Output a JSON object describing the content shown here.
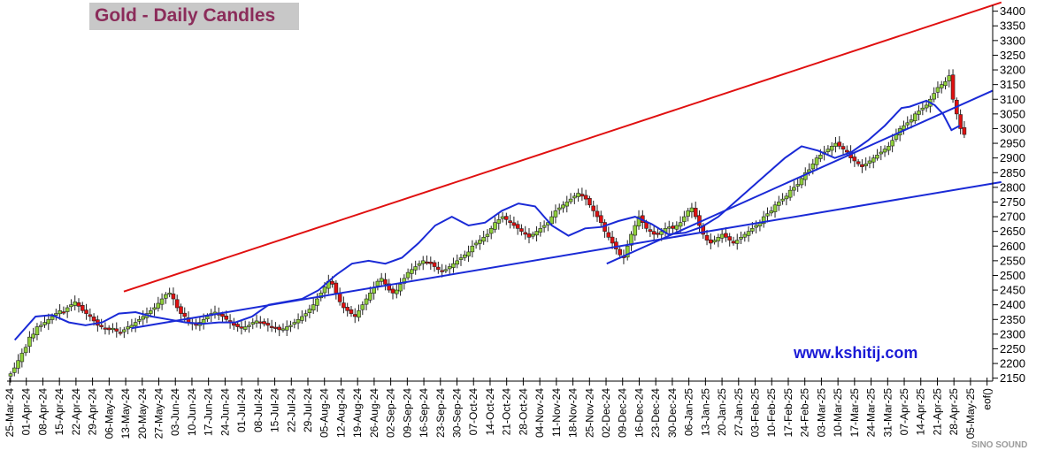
{
  "chart_data": {
    "type": "candlestick",
    "title": "Gold - Daily Candles",
    "watermark_url": "www.kshitij.com",
    "source_logo": "SINO SOUND",
    "y_ticks": [
      2150,
      2200,
      2250,
      2300,
      2350,
      2400,
      2450,
      2500,
      2550,
      2600,
      2650,
      2700,
      2750,
      2800,
      2850,
      2900,
      2950,
      3000,
      3050,
      3100,
      3150,
      3200,
      3250,
      3300,
      3350,
      3400
    ],
    "ylim": [
      2140,
      3420
    ],
    "x_labels": [
      "25-Mar-24",
      "01-Apr-24",
      "08-Apr-24",
      "15-Apr-24",
      "22-Apr-24",
      "29-Apr-24",
      "06-May-24",
      "13-May-24",
      "20-May-24",
      "27-May-24",
      "03-Jun-24",
      "10-Jun-24",
      "17-Jun-24",
      "24-Jun-24",
      "01-Jul-24",
      "08-Jul-24",
      "15-Jul-24",
      "22-Jul-24",
      "29-Jul-24",
      "05-Aug-24",
      "12-Aug-24",
      "19-Aug-24",
      "26-Aug-24",
      "02-Sep-24",
      "09-Sep-24",
      "16-Sep-24",
      "23-Sep-24",
      "30-Sep-24",
      "07-Oct-24",
      "14-Oct-24",
      "21-Oct-24",
      "28-Oct-24",
      "04-Nov-24",
      "11-Nov-24",
      "18-Nov-24",
      "25-Nov-24",
      "02-Dec-24",
      "09-Dec-24",
      "16-Dec-24",
      "23-Dec-24",
      "30-Dec-24",
      "06-Jan-25",
      "13-Jan-25",
      "20-Jan-25",
      "27-Jan-25",
      "03-Feb-25",
      "10-Feb-25",
      "17-Feb-25",
      "24-Feb-25",
      "03-Mar-25",
      "10-Mar-25",
      "17-Mar-25",
      "24-Mar-25",
      "31-Mar-25",
      "07-Apr-25",
      "14-Apr-25",
      "21-Apr-25",
      "28-Apr-25",
      "05-May-25",
      "eof()"
    ],
    "series": [
      {
        "name": "Gold daily close",
        "values": [
          2165,
          2185,
          2210,
          2235,
          2255,
          2290,
          2300,
          2325,
          2330,
          2340,
          2350,
          2360,
          2370,
          2380,
          2375,
          2390,
          2400,
          2410,
          2395,
          2380,
          2370,
          2360,
          2345,
          2330,
          2325,
          2320,
          2315,
          2320,
          2310,
          2305,
          2315,
          2325,
          2330,
          2340,
          2350,
          2360,
          2370,
          2380,
          2390,
          2405,
          2420,
          2435,
          2440,
          2420,
          2390,
          2370,
          2360,
          2340,
          2335,
          2330,
          2340,
          2350,
          2360,
          2370,
          2375,
          2365,
          2360,
          2350,
          2340,
          2330,
          2325,
          2320,
          2325,
          2330,
          2340,
          2345,
          2340,
          2335,
          2330,
          2325,
          2320,
          2315,
          2318,
          2325,
          2330,
          2340,
          2350,
          2360,
          2370,
          2385,
          2400,
          2420,
          2440,
          2460,
          2480,
          2470,
          2440,
          2410,
          2390,
          2380,
          2370,
          2360,
          2380,
          2400,
          2420,
          2440,
          2460,
          2480,
          2490,
          2470,
          2450,
          2440,
          2450,
          2470,
          2490,
          2510,
          2520,
          2530,
          2540,
          2550,
          2545,
          2540,
          2530,
          2520,
          2515,
          2520,
          2530,
          2540,
          2550,
          2560,
          2570,
          2580,
          2600,
          2610,
          2620,
          2630,
          2640,
          2660,
          2680,
          2690,
          2700,
          2690,
          2680,
          2670,
          2660,
          2650,
          2640,
          2630,
          2640,
          2650,
          2660,
          2670,
          2680,
          2700,
          2720,
          2730,
          2740,
          2750,
          2760,
          2770,
          2780,
          2770,
          2760,
          2740,
          2720,
          2700,
          2680,
          2650,
          2630,
          2610,
          2590,
          2570,
          2560,
          2600,
          2640,
          2670,
          2700,
          2680,
          2660,
          2650,
          2640,
          2640,
          2650,
          2660,
          2665,
          2660,
          2670,
          2680,
          2700,
          2720,
          2730,
          2700,
          2670,
          2640,
          2620,
          2610,
          2620,
          2630,
          2640,
          2630,
          2620,
          2610,
          2620,
          2630,
          2640,
          2650,
          2660,
          2670,
          2680,
          2700,
          2710,
          2720,
          2740,
          2750,
          2760,
          2770,
          2790,
          2800,
          2810,
          2830,
          2850,
          2860,
          2880,
          2900,
          2910,
          2920,
          2930,
          2940,
          2950,
          2940,
          2930,
          2920,
          2900,
          2890,
          2880,
          2870,
          2880,
          2890,
          2900,
          2910,
          2920,
          2930,
          2940,
          2960,
          2980,
          3000,
          3010,
          3020,
          3030,
          3050,
          3060,
          3070,
          3080,
          3100,
          3120,
          3140,
          3150,
          3160,
          3180,
          3100,
          3050,
          3000,
          2980
        ]
      },
      {
        "name": "Moving average"
      },
      {
        "name": "Upper trendline"
      },
      {
        "name": "Lower trendline"
      },
      {
        "name": "Short trendline"
      }
    ],
    "moving_average": [
      [
        0.5,
        2280
      ],
      [
        3,
        2360
      ],
      [
        5,
        2365
      ],
      [
        7,
        2340
      ],
      [
        9,
        2330
      ],
      [
        11,
        2340
      ],
      [
        13,
        2370
      ],
      [
        15,
        2375
      ],
      [
        17,
        2360
      ],
      [
        19,
        2350
      ],
      [
        21,
        2340
      ],
      [
        23,
        2335
      ],
      [
        25,
        2340
      ],
      [
        27,
        2340
      ],
      [
        29,
        2360
      ],
      [
        31,
        2400
      ],
      [
        33,
        2410
      ],
      [
        35,
        2420
      ],
      [
        37,
        2450
      ],
      [
        39,
        2500
      ],
      [
        41,
        2540
      ],
      [
        43,
        2550
      ],
      [
        45,
        2540
      ],
      [
        47,
        2560
      ],
      [
        49,
        2610
      ],
      [
        51,
        2670
      ],
      [
        53,
        2700
      ],
      [
        55,
        2670
      ],
      [
        57,
        2680
      ],
      [
        59,
        2720
      ],
      [
        61,
        2745
      ],
      [
        63,
        2735
      ],
      [
        65,
        2670
      ],
      [
        67,
        2635
      ],
      [
        69,
        2660
      ],
      [
        71,
        2665
      ],
      [
        73,
        2685
      ],
      [
        75,
        2700
      ],
      [
        77,
        2675
      ],
      [
        79,
        2640
      ],
      [
        81,
        2645
      ],
      [
        83,
        2665
      ],
      [
        85,
        2700
      ],
      [
        87,
        2750
      ],
      [
        89,
        2800
      ],
      [
        91,
        2850
      ],
      [
        93,
        2900
      ],
      [
        95,
        2940
      ],
      [
        97,
        2925
      ],
      [
        99,
        2900
      ],
      [
        101,
        2920
      ],
      [
        103,
        2960
      ],
      [
        105,
        3010
      ],
      [
        107,
        3070
      ],
      [
        108,
        3075
      ],
      [
        110,
        3095
      ],
      [
        111,
        3080
      ],
      [
        112,
        3050
      ],
      [
        113,
        2995
      ],
      [
        114,
        3010
      ]
    ],
    "trendlines": [
      {
        "name": "Upper trendline",
        "color": "#e01010",
        "from": [
          13.6,
          2445
        ],
        "to": [
          119,
          3430
        ]
      },
      {
        "name": "Lower trendline",
        "color": "#1a2ad6",
        "from": [
          14.5,
          2320
        ],
        "to": [
          119,
          2818
        ]
      },
      {
        "name": "Short trendline",
        "color": "#1a2ad6",
        "from": [
          71.6,
          2540
        ],
        "to": [
          118,
          3130
        ]
      }
    ],
    "colors": {
      "up": "#8fcf3a",
      "down": "#e01010",
      "ma": "#1a2ad6",
      "title_bg": "#c8c8c8",
      "title_text": "#8b2c5a"
    }
  }
}
